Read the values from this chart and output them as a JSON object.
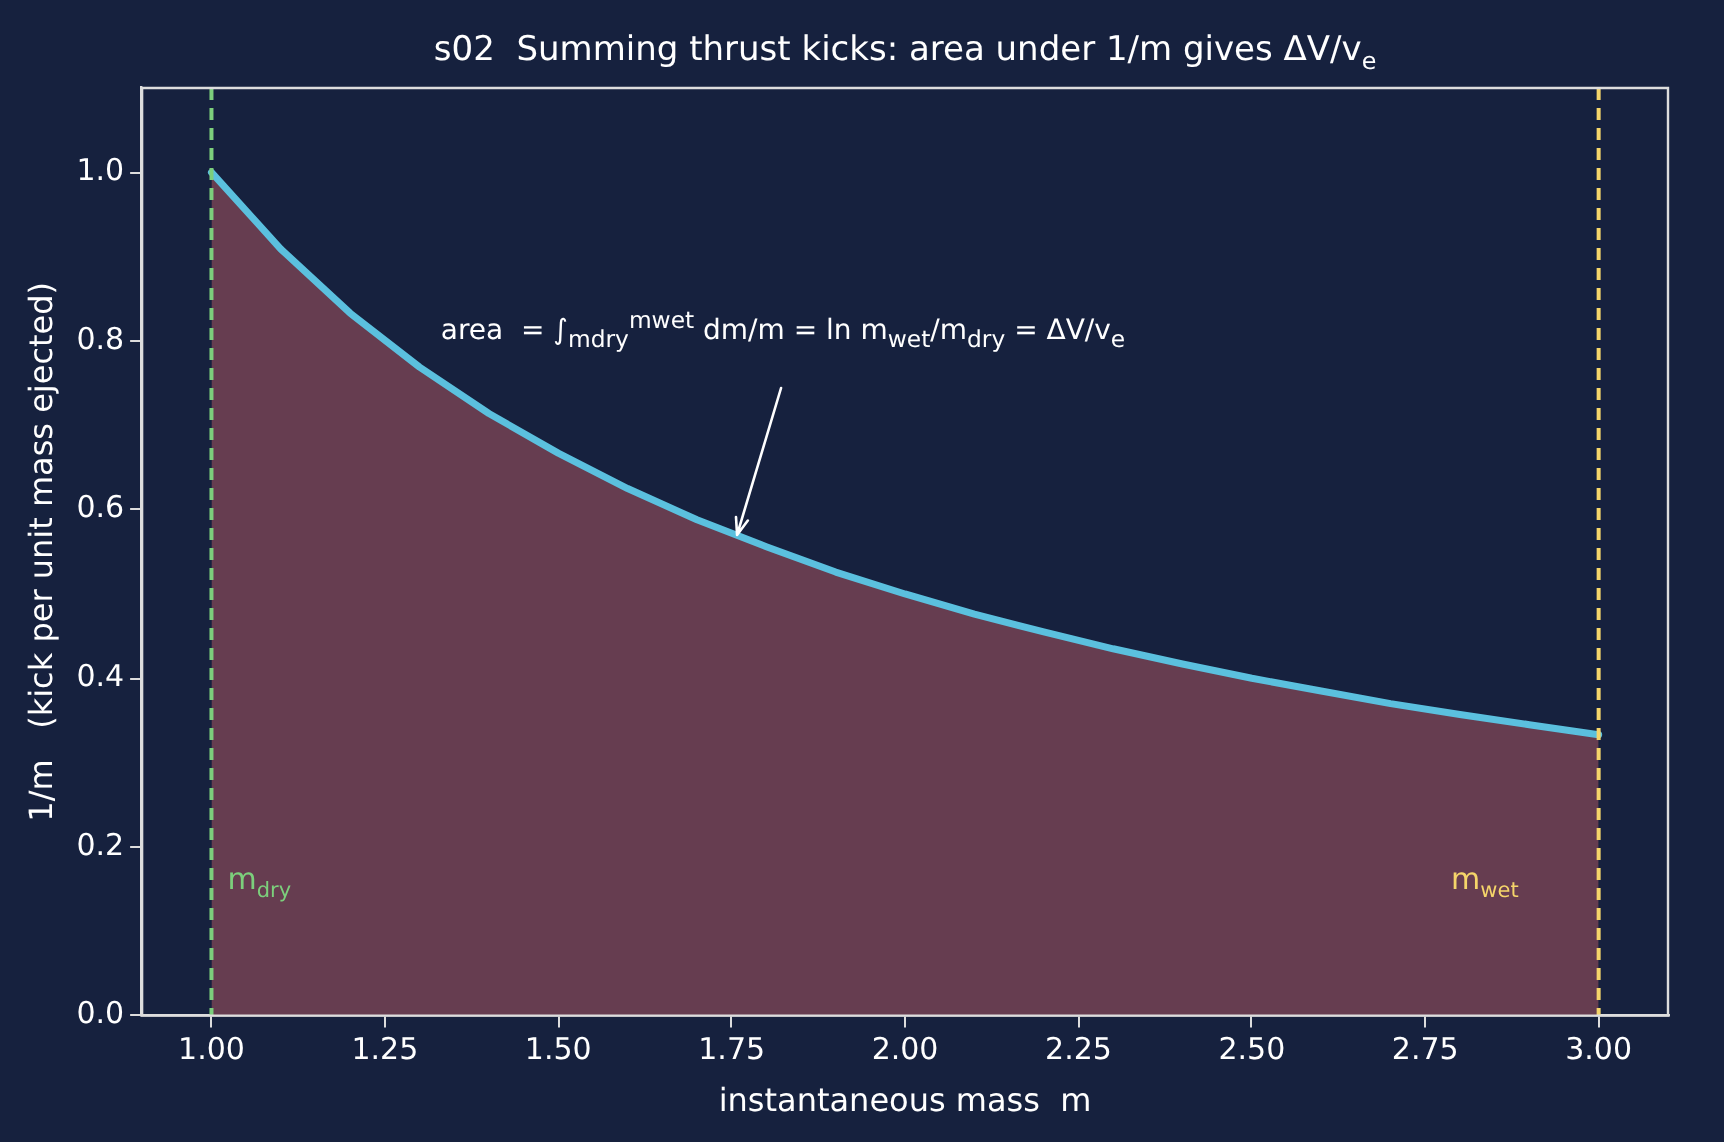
{
  "chart_data": {
    "type": "area",
    "title": "s02  Summing thrust kicks: area under 1/m gives ΔV/v$_{e}$",
    "xlabel": "instantaneous mass  m",
    "ylabel": "1/m   (kick per unit mass ejected)",
    "x": [
      1.0,
      1.1,
      1.2,
      1.3,
      1.4,
      1.5,
      1.6,
      1.7,
      1.8,
      1.9,
      2.0,
      2.1,
      2.2,
      2.3,
      2.4,
      2.5,
      2.6,
      2.7,
      2.8,
      2.9,
      3.0
    ],
    "series": [
      {
        "color": "#663d50",
        "values": [
          1,
          0.909,
          0.833,
          0.769,
          0.714,
          0.667,
          0.625,
          0.588,
          0.556,
          0.526,
          0.5,
          0.476,
          0.455,
          0.435,
          0.417,
          0.4,
          0.385,
          0.37,
          0.357,
          0.345,
          0.333
        ]
      },
      {
        "type": "line",
        "color": "#5bc0de",
        "values": [
          1,
          0.909,
          0.833,
          0.769,
          0.714,
          0.667,
          0.625,
          0.588,
          0.556,
          0.526,
          0.5,
          0.476,
          0.455,
          0.435,
          0.417,
          0.4,
          0.385,
          0.37,
          0.357,
          0.345,
          0.333
        ]
      }
    ],
    "xlim": [
      0.9,
      3.1
    ],
    "xticks": [
      {
        "value": 1,
        "label": "1.00"
      },
      {
        "value": 1.25,
        "label": "1.25"
      },
      {
        "value": 1.5,
        "label": "1.50"
      },
      {
        "value": 1.75,
        "label": "1.75"
      },
      {
        "value": 2,
        "label": "2.00"
      },
      {
        "value": 2.25,
        "label": "2.25"
      },
      {
        "value": 2.5,
        "label": "2.50"
      },
      {
        "value": 2.75,
        "label": "2.75"
      },
      {
        "value": 3,
        "label": "3.00"
      }
    ],
    "ylim": [
      0,
      1.1
    ],
    "yticks": [
      {
        "value": 0,
        "label": "0.0"
      },
      {
        "value": 0.2,
        "label": "0.2"
      },
      {
        "value": 0.4,
        "label": "0.4"
      },
      {
        "value": 0.6,
        "label": "0.6"
      },
      {
        "value": 0.8,
        "label": "0.8"
      },
      {
        "value": 1,
        "label": "1.0"
      }
    ],
    "ref_lines": [
      {
        "axis": "x",
        "value": 1,
        "label": "m$_{dry}$",
        "color": "#7ccf7c",
        "line_style": "dashed"
      },
      {
        "axis": "x",
        "value": 3,
        "label": "m$_{wet}$",
        "color": "#f5d56a",
        "line_style": "dashed"
      }
    ],
    "annotations": [
      "area  = ∫$_{mdry}$$^{mwet}$ dm/m = ln m$_{wet}$/m$_{dry}$ = ΔV/v$_{e}$"
    ],
    "grid": false,
    "legend": false,
    "marker": "none",
    "line_style": "solid"
  }
}
